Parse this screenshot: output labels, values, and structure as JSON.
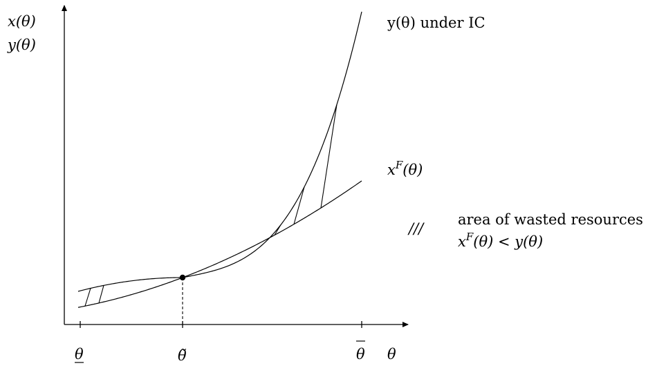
{
  "axes": {
    "y_label_line1": "x(θ)",
    "y_label_line2": "y(θ)",
    "x_label": "θ"
  },
  "ticks": {
    "theta_low": "θ",
    "theta_tilde": "θ̃",
    "theta_high": "θ"
  },
  "curves": {
    "y_label": "y(θ) under IC",
    "xF_label": "x",
    "xF_superscript": "F",
    "xF_arg": "(θ)"
  },
  "legend": {
    "hatch_symbol": "///",
    "text_line1": "area of wasted resources",
    "text_line2_x": "x",
    "text_line2_sup": "F",
    "text_line2_rest": "(θ) < y(θ)"
  }
}
